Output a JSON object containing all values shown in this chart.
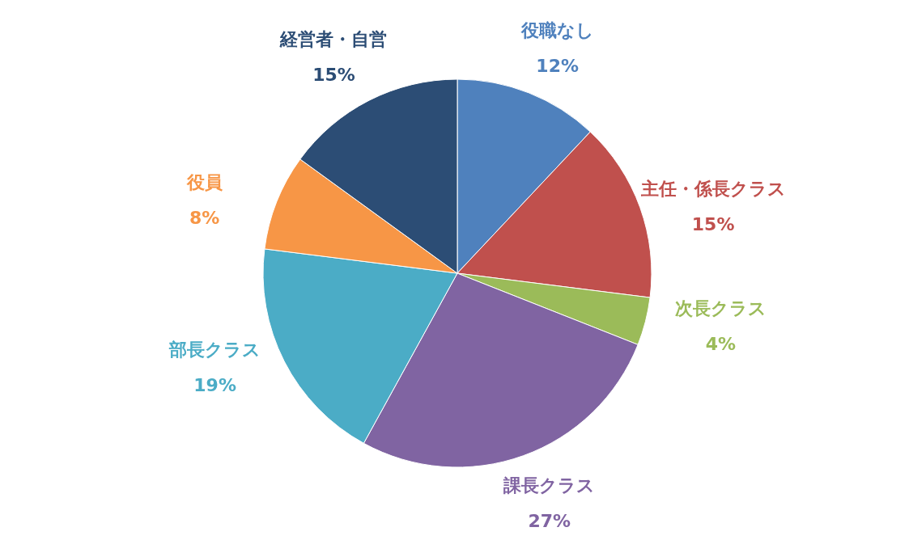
{
  "chart_data": {
    "type": "pie",
    "categories": [
      "役職なし",
      "主任・係長クラス",
      "次長クラス",
      "課長クラス",
      "部長クラス",
      "役員",
      "経営者・自営"
    ],
    "values": [
      12,
      15,
      4,
      27,
      19,
      8,
      15
    ],
    "value_labels": [
      "12%",
      "15%",
      "4%",
      "27%",
      "19%",
      "8%",
      "15%"
    ],
    "colors": [
      "#4f81bd",
      "#c0504d",
      "#9bbb59",
      "#8064a2",
      "#4bacc6",
      "#f79646",
      "#2c4d75"
    ],
    "legend": false
  }
}
